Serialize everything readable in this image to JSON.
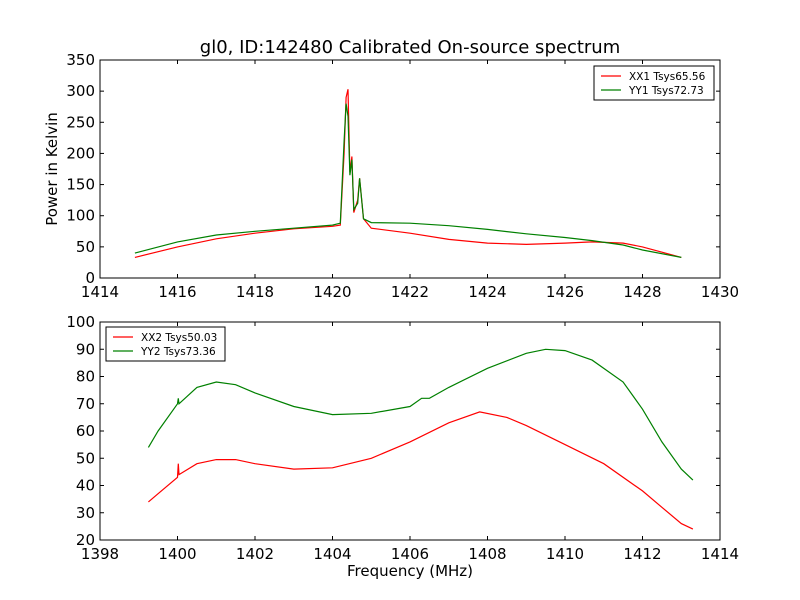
{
  "chart_data": [
    {
      "type": "line",
      "title": "gl0, ID:142480 Calibrated On-source spectrum",
      "xlabel": "",
      "ylabel": "Power in Kelvin",
      "xlim": [
        1414,
        1430
      ],
      "ylim": [
        0,
        350
      ],
      "xticks": [
        1414,
        1416,
        1418,
        1420,
        1422,
        1424,
        1426,
        1428,
        1430
      ],
      "yticks": [
        0,
        50,
        100,
        150,
        200,
        250,
        300,
        350
      ],
      "legend_position": "top-right",
      "series": [
        {
          "name": "XX1 Tsys65.56",
          "color": "#ff0000",
          "x": [
            1414.9,
            1416,
            1417,
            1418,
            1419,
            1420,
            1420.2,
            1420.3,
            1420.35,
            1420.4,
            1420.45,
            1420.5,
            1420.55,
            1420.65,
            1420.7,
            1420.8,
            1421,
            1422,
            1423,
            1424,
            1425,
            1426,
            1426.7,
            1427.5,
            1428,
            1429
          ],
          "y": [
            33,
            50,
            63,
            72,
            79,
            83,
            85,
            200,
            290,
            303,
            170,
            195,
            105,
            125,
            160,
            95,
            80,
            72,
            62,
            56,
            54,
            56,
            58,
            56,
            50,
            33
          ]
        },
        {
          "name": "YY1 Tsys72.73",
          "color": "#008000",
          "x": [
            1414.9,
            1416,
            1417,
            1418,
            1419,
            1420,
            1420.2,
            1420.3,
            1420.35,
            1420.4,
            1420.45,
            1420.5,
            1420.55,
            1420.65,
            1420.7,
            1420.8,
            1421,
            1422,
            1423,
            1424,
            1425,
            1426,
            1426.7,
            1427.5,
            1428,
            1429
          ],
          "y": [
            40,
            58,
            69,
            75,
            80,
            85,
            88,
            220,
            280,
            260,
            165,
            190,
            110,
            120,
            160,
            95,
            89,
            88,
            84,
            78,
            71,
            65,
            60,
            53,
            45,
            33
          ]
        }
      ]
    },
    {
      "type": "line",
      "title": "",
      "xlabel": "Frequency (MHz)",
      "ylabel": "",
      "xlim": [
        1398,
        1414
      ],
      "ylim": [
        20,
        100
      ],
      "xticks": [
        1398,
        1400,
        1402,
        1404,
        1406,
        1408,
        1410,
        1412,
        1414
      ],
      "yticks": [
        20,
        30,
        40,
        50,
        60,
        70,
        80,
        90,
        100
      ],
      "legend_position": "top-left",
      "series": [
        {
          "name": "XX2 Tsys50.03",
          "color": "#ff0000",
          "x": [
            1399.25,
            1399.5,
            1400,
            1400.02,
            1400.04,
            1400.5,
            1401,
            1401.5,
            1402,
            1403,
            1404,
            1405,
            1406,
            1407,
            1407.8,
            1408.5,
            1409,
            1410,
            1411,
            1412,
            1412.5,
            1413,
            1413.3
          ],
          "y": [
            34,
            37,
            43,
            48,
            44,
            48,
            49.5,
            49.5,
            48,
            46,
            46.5,
            50,
            56,
            63,
            67,
            65,
            62,
            55,
            48,
            38,
            32,
            26,
            24
          ]
        },
        {
          "name": "YY2 Tsys73.36",
          "color": "#008000",
          "x": [
            1399.25,
            1399.5,
            1400,
            1400.02,
            1400.04,
            1400.5,
            1401,
            1401.5,
            1402,
            1403,
            1404,
            1405,
            1406,
            1406.3,
            1406.5,
            1407,
            1408,
            1409,
            1409.5,
            1410,
            1410.7,
            1411.5,
            1412,
            1412.5,
            1413,
            1413.3
          ],
          "y": [
            54,
            60,
            70,
            72,
            70,
            76,
            78,
            77,
            74,
            69,
            66,
            66.5,
            69,
            72,
            72,
            76,
            83,
            88.5,
            90,
            89.5,
            86,
            78,
            68,
            56,
            46,
            42
          ]
        }
      ]
    }
  ]
}
